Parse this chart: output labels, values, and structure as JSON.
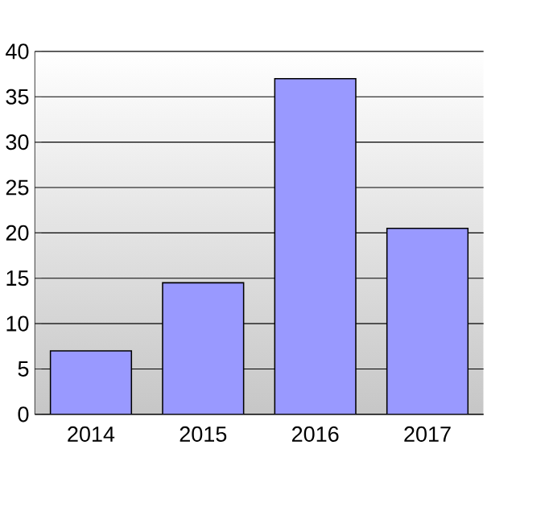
{
  "chart_data": {
    "type": "bar",
    "categories": [
      "2014",
      "2015",
      "2016",
      "2017"
    ],
    "values": [
      7,
      14.5,
      37,
      20.5
    ],
    "color": "#9999ff",
    "ylim": [
      0,
      40
    ],
    "yticks": [
      0,
      5,
      10,
      15,
      20,
      25,
      30,
      35,
      40
    ],
    "grid": "y"
  }
}
